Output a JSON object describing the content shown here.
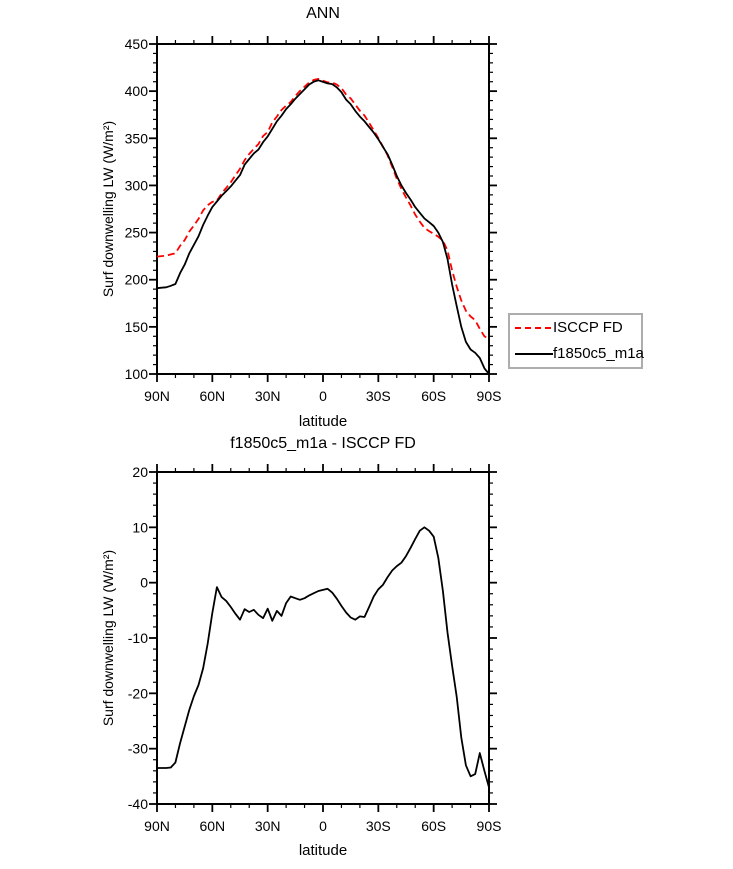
{
  "figure": {
    "background": "#ffffff",
    "axis_color": "#000000"
  },
  "chart_data": [
    {
      "type": "line",
      "title": "ANN",
      "x_axis": {
        "label": "latitude",
        "range": [
          90,
          -90
        ],
        "tick_values": [
          90,
          60,
          30,
          0,
          -30,
          -60,
          -90
        ],
        "tick_labels": [
          "90N",
          "60N",
          "30N",
          "0",
          "30S",
          "60S",
          "90S"
        ],
        "minor_step": 10
      },
      "y_axis": {
        "label": "Surf downwelling LW (W/m²)",
        "range": [
          100,
          450
        ],
        "tick_values": [
          450,
          400,
          350,
          300,
          250,
          200,
          150,
          100
        ],
        "minor_step": 10
      },
      "latitudes": [
        90,
        87.5,
        85,
        82.5,
        80,
        77.5,
        75,
        72.5,
        70,
        67.5,
        65,
        62.5,
        60,
        57.5,
        55,
        52.5,
        50,
        47.5,
        45,
        42.5,
        40,
        37.5,
        35,
        32.5,
        30,
        27.5,
        25,
        22.5,
        20,
        17.5,
        15,
        12.5,
        10,
        7.5,
        5,
        2.5,
        0,
        -2.5,
        -5,
        -7.5,
        -10,
        -12.5,
        -15,
        -17.5,
        -20,
        -22.5,
        -25,
        -27.5,
        -30,
        -32.5,
        -35,
        -37.5,
        -40,
        -42.5,
        -45,
        -47.5,
        -50,
        -52.5,
        -55,
        -57.5,
        -60,
        -62.5,
        -65,
        -67.5,
        -70,
        -72.5,
        -75,
        -77.5,
        -80,
        -82.5,
        -85,
        -87.5,
        -90
      ],
      "series": [
        {
          "name": "ISCCP FD",
          "color": "#ff0000",
          "line_style": "dashed",
          "values": [
            224.5,
            225,
            225.5,
            226.9,
            228,
            236,
            242,
            251,
            257.5,
            264.5,
            273.5,
            279,
            282.5,
            283.8,
            291.6,
            297.3,
            303.4,
            310.6,
            317.7,
            326.8,
            333.3,
            338.9,
            343.8,
            352.4,
            356.7,
            366.9,
            373.1,
            380,
            384.7,
            388.5,
            394.8,
            400.1,
            404.8,
            409.3,
            411.9,
            413,
            411.1,
            409.3,
            409.3,
            406.9,
            403.2,
            396.4,
            392.3,
            385.7,
            379.1,
            374.2,
            366.4,
            358.5,
            350.2,
            341.4,
            332,
            319.8,
            307,
            296.4,
            287.2,
            278.7,
            269.1,
            261.6,
            255,
            251.6,
            248.7,
            245.5,
            241.5,
            231,
            210,
            192.6,
            178,
            167,
            161,
            157.1,
            147.8,
            140,
            137
          ]
        },
        {
          "name": "f1850c5_m1a",
          "color": "#000000",
          "line_style": "solid",
          "values": [
            191,
            191.5,
            192,
            193.5,
            195.5,
            207,
            216,
            228,
            237,
            246,
            258,
            268,
            277,
            283,
            289,
            294,
            299,
            305,
            311,
            322,
            328,
            334,
            338,
            346,
            352,
            360,
            368,
            374,
            381,
            386,
            392,
            397,
            402,
            407,
            410,
            411.5,
            409.8,
            408.2,
            407.5,
            404,
            399,
            391,
            386,
            379,
            373,
            368,
            362,
            356,
            349,
            341,
            333,
            322,
            310,
            300,
            292,
            285,
            277,
            271,
            265,
            261,
            257,
            250,
            240,
            222,
            195,
            172,
            150,
            134,
            126,
            122.5,
            117,
            106,
            100
          ]
        }
      ],
      "legend": {
        "position": "outside-right-bottom",
        "border_color": "#adadad",
        "items": [
          "ISCCP FD",
          "f1850c5_m1a"
        ]
      }
    },
    {
      "type": "line",
      "title": "f1850c5_m1a - ISCCP FD",
      "x_axis": {
        "label": "latitude",
        "range": [
          90,
          -90
        ],
        "tick_values": [
          90,
          60,
          30,
          0,
          -30,
          -60,
          -90
        ],
        "tick_labels": [
          "90N",
          "60N",
          "30N",
          "0",
          "30S",
          "60S",
          "90S"
        ],
        "minor_step": 10
      },
      "y_axis": {
        "label": "Surf downwelling LW (W/m²)",
        "range": [
          -40,
          20
        ],
        "tick_values": [
          20,
          10,
          0,
          -10,
          -20,
          -30,
          -40
        ],
        "minor_step": 2
      },
      "latitudes": [
        90,
        87.5,
        85,
        82.5,
        80,
        77.5,
        75,
        72.5,
        70,
        67.5,
        65,
        62.5,
        60,
        57.5,
        55,
        52.5,
        50,
        47.5,
        45,
        42.5,
        40,
        37.5,
        35,
        32.5,
        30,
        27.5,
        25,
        22.5,
        20,
        17.5,
        15,
        12.5,
        10,
        7.5,
        5,
        2.5,
        0,
        -2.5,
        -5,
        -7.5,
        -10,
        -12.5,
        -15,
        -17.5,
        -20,
        -22.5,
        -25,
        -27.5,
        -30,
        -32.5,
        -35,
        -37.5,
        -40,
        -42.5,
        -45,
        -47.5,
        -50,
        -52.5,
        -55,
        -57.5,
        -60,
        -62.5,
        -65,
        -67.5,
        -70,
        -72.5,
        -75,
        -77.5,
        -80,
        -82.5,
        -85,
        -87.5,
        -90
      ],
      "series": [
        {
          "name": "f1850c5_m1a - ISCCP FD",
          "color": "#000000",
          "line_style": "solid",
          "values": [
            -33.5,
            -33.5,
            -33.5,
            -33.4,
            -32.5,
            -29,
            -26,
            -23,
            -20.5,
            -18.5,
            -15.5,
            -11,
            -5.5,
            -0.8,
            -2.6,
            -3.3,
            -4.4,
            -5.6,
            -6.7,
            -4.8,
            -5.3,
            -4.9,
            -5.8,
            -6.4,
            -4.7,
            -6.9,
            -5.1,
            -6,
            -3.7,
            -2.5,
            -2.8,
            -3.1,
            -2.8,
            -2.3,
            -1.9,
            -1.5,
            -1.3,
            -1.1,
            -1.8,
            -2.9,
            -4.2,
            -5.4,
            -6.3,
            -6.7,
            -6.1,
            -6.2,
            -4.4,
            -2.5,
            -1.2,
            -0.4,
            1,
            2.2,
            3,
            3.6,
            4.8,
            6.3,
            7.9,
            9.4,
            10,
            9.4,
            8.3,
            4.5,
            -1.5,
            -9,
            -15,
            -20.6,
            -28,
            -33,
            -35,
            -34.6,
            -30.8,
            -34,
            -37
          ]
        }
      ]
    }
  ]
}
